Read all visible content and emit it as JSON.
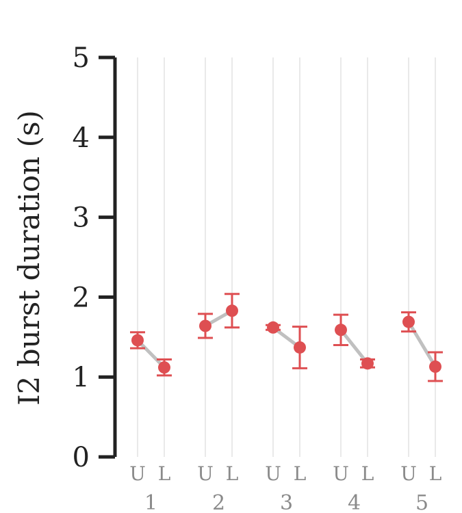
{
  "chart_data": {
    "type": "line",
    "ylabel": "I2 burst duration (s)",
    "ylim": [
      0,
      5
    ],
    "yticks": [
      "0",
      "1",
      "2",
      "3",
      "4",
      "5"
    ],
    "grid": "vertical",
    "conditions": [
      "U",
      "L"
    ],
    "groups": [
      {
        "label": "1",
        "values": [
          1.46,
          1.12
        ],
        "errors": [
          0.1,
          0.1
        ]
      },
      {
        "label": "2",
        "values": [
          1.64,
          1.83
        ],
        "errors": [
          0.15,
          0.21
        ]
      },
      {
        "label": "3",
        "values": [
          1.62,
          1.37
        ],
        "errors": [
          0.03,
          0.26
        ]
      },
      {
        "label": "4",
        "values": [
          1.59,
          1.17
        ],
        "errors": [
          0.19,
          0.05
        ]
      },
      {
        "label": "5",
        "values": [
          1.69,
          1.13
        ],
        "errors": [
          0.12,
          0.18
        ]
      }
    ],
    "colors": {
      "point": "#de4f52",
      "connector": "#c0c0c0",
      "grid": "#e2e2e2",
      "axis": "#222222",
      "tick_text": "#8a8a8a"
    }
  }
}
